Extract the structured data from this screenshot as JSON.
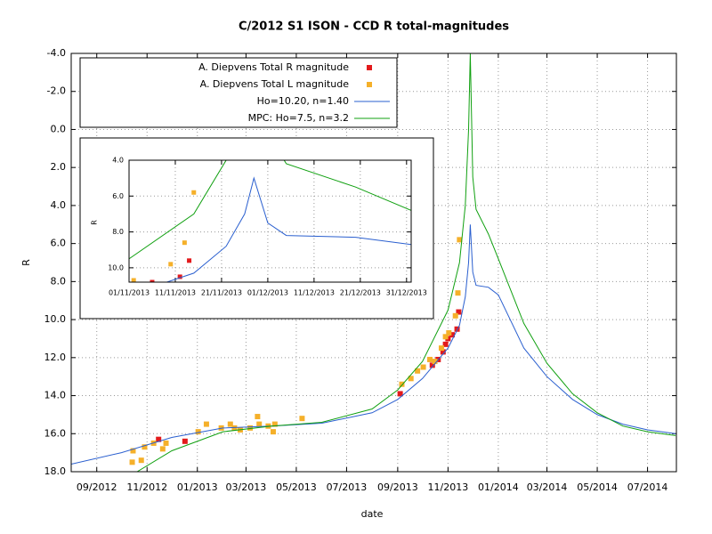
{
  "chart_data": {
    "type": "line",
    "title": "C/2012 S1 ISON - CCD R total-magnitudes",
    "xlabel": "date",
    "ylabel": "R",
    "yreverse": true,
    "grid": true,
    "legend": "top-left",
    "xlim": [
      "2012-08-01",
      "2014-08-05"
    ],
    "ylim": [
      -4,
      18
    ],
    "yticks": [
      {
        "value": -4,
        "label": "-4.0"
      },
      {
        "value": -2,
        "label": "-2.0"
      },
      {
        "value": 0,
        "label": "0.0"
      },
      {
        "value": 2,
        "label": "2.0"
      },
      {
        "value": 4,
        "label": "4.0"
      },
      {
        "value": 6,
        "label": "6.0"
      },
      {
        "value": 8,
        "label": "8.0"
      },
      {
        "value": 10,
        "label": "10.0"
      },
      {
        "value": 12,
        "label": "12.0"
      },
      {
        "value": 14,
        "label": "14.0"
      },
      {
        "value": 16,
        "label": "16.0"
      },
      {
        "value": 18,
        "label": "18.0"
      }
    ],
    "xticks": [
      {
        "value": "2012-09-01",
        "label": "09/2012"
      },
      {
        "value": "2012-11-01",
        "label": "11/2012"
      },
      {
        "value": "2013-01-01",
        "label": "01/2013"
      },
      {
        "value": "2013-03-01",
        "label": "03/2013"
      },
      {
        "value": "2013-05-01",
        "label": "05/2013"
      },
      {
        "value": "2013-07-01",
        "label": "07/2013"
      },
      {
        "value": "2013-09-01",
        "label": "09/2013"
      },
      {
        "value": "2013-11-01",
        "label": "11/2013"
      },
      {
        "value": "2014-01-01",
        "label": "01/2014"
      },
      {
        "value": "2014-03-01",
        "label": "03/2014"
      },
      {
        "value": "2014-05-01",
        "label": "05/2014"
      },
      {
        "value": "2014-07-01",
        "label": "07/2014"
      }
    ],
    "series": [
      {
        "name": "A. Diepvens Total R magnitude",
        "color": "#e31a1c",
        "style": "points",
        "x": [
          "2012-11-15",
          "2012-12-17",
          "2013-09-04",
          "2013-10-13",
          "2013-10-20",
          "2013-10-26",
          "2013-10-29",
          "2013-11-01",
          "2013-11-06",
          "2013-11-12",
          "2013-11-14"
        ],
        "values": [
          16.3,
          16.4,
          13.9,
          12.4,
          12.1,
          11.7,
          11.3,
          11.0,
          10.8,
          10.5,
          9.6
        ]
      },
      {
        "name": "A. Diepvens Total L magnitude",
        "color": "#f5b02a",
        "style": "points",
        "x": [
          "2012-10-14",
          "2012-10-15",
          "2012-10-25",
          "2012-10-29",
          "2012-11-09",
          "2012-11-20",
          "2012-11-24",
          "2013-01-02",
          "2013-01-12",
          "2013-01-30",
          "2013-02-10",
          "2013-02-15",
          "2013-02-22",
          "2013-03-06",
          "2013-03-15",
          "2013-03-17",
          "2013-03-28",
          "2013-04-03",
          "2013-04-05",
          "2013-05-08",
          "2013-09-06",
          "2013-09-17",
          "2013-09-25",
          "2013-10-02",
          "2013-10-10",
          "2013-10-16",
          "2013-10-24",
          "2013-10-29",
          "2013-11-02",
          "2013-11-10",
          "2013-11-13",
          "2013-11-15"
        ],
        "values": [
          17.5,
          16.9,
          17.4,
          16.7,
          16.5,
          16.8,
          16.5,
          15.9,
          15.5,
          15.7,
          15.5,
          15.7,
          15.8,
          15.7,
          15.1,
          15.5,
          15.6,
          15.9,
          15.5,
          15.2,
          13.4,
          13.1,
          12.7,
          12.5,
          12.1,
          12.2,
          11.5,
          10.9,
          10.7,
          9.8,
          8.6,
          5.8
        ]
      },
      {
        "name": "Ho=10.20, n=1.40",
        "color": "#2a5fcf",
        "style": "line",
        "x": [
          "2012-08-01",
          "2012-10-01",
          "2012-12-01",
          "2013-02-01",
          "2013-04-01",
          "2013-06-01",
          "2013-08-01",
          "2013-09-01",
          "2013-10-01",
          "2013-11-01",
          "2013-11-15",
          "2013-11-22",
          "2013-11-26",
          "2013-11-28",
          "2013-12-01",
          "2013-12-05",
          "2013-12-20",
          "2014-01-01",
          "2014-02-01",
          "2014-03-01",
          "2014-04-01",
          "2014-05-01",
          "2014-06-01",
          "2014-07-01",
          "2014-08-04"
        ],
        "values": [
          17.6,
          17.0,
          16.2,
          15.7,
          15.6,
          15.45,
          14.9,
          14.2,
          13.1,
          11.5,
          10.3,
          8.8,
          7.0,
          5.0,
          7.5,
          8.2,
          8.3,
          8.7,
          11.5,
          13.0,
          14.2,
          15.0,
          15.5,
          15.8,
          16.0
        ]
      },
      {
        "name": "MPC: Ho=7.5, n=3.2",
        "color": "#10a010",
        "style": "line",
        "x": [
          "2012-10-20",
          "2012-12-01",
          "2013-02-01",
          "2013-04-01",
          "2013-06-01",
          "2013-08-01",
          "2013-09-01",
          "2013-10-01",
          "2013-11-01",
          "2013-11-15",
          "2013-11-22",
          "2013-11-26",
          "2013-11-28",
          "2013-12-01",
          "2013-12-05",
          "2013-12-20",
          "2014-01-01",
          "2014-02-01",
          "2014-03-01",
          "2014-04-01",
          "2014-05-01",
          "2014-06-01",
          "2014-07-01",
          "2014-08-04"
        ],
        "values": [
          18.0,
          16.9,
          15.9,
          15.6,
          15.4,
          14.7,
          13.7,
          12.2,
          9.5,
          7.0,
          4.0,
          0.0,
          -4.0,
          2.5,
          4.2,
          5.5,
          6.8,
          10.2,
          12.3,
          13.9,
          14.9,
          15.6,
          15.9,
          16.1
        ]
      }
    ],
    "inset": {
      "ylabel": "R",
      "xlim": [
        "2013-11-01",
        "2014-01-01"
      ],
      "ylim": [
        4,
        10.8
      ],
      "yticks": [
        {
          "value": 4,
          "label": "4.0"
        },
        {
          "value": 6,
          "label": "6.0"
        },
        {
          "value": 8,
          "label": "8.0"
        },
        {
          "value": 10,
          "label": "10.0"
        }
      ],
      "xticks": [
        {
          "value": "2013-11-01",
          "label": "01/11/2013"
        },
        {
          "value": "2013-11-11",
          "label": "11/11/2013"
        },
        {
          "value": "2013-11-21",
          "label": "21/11/2013"
        },
        {
          "value": "2013-12-01",
          "label": "01/12/2013"
        },
        {
          "value": "2013-12-11",
          "label": "11/12/2013"
        },
        {
          "value": "2013-12-21",
          "label": "21/12/2013"
        },
        {
          "value": "2013-12-31",
          "label": "31/12/2013"
        }
      ]
    }
  }
}
